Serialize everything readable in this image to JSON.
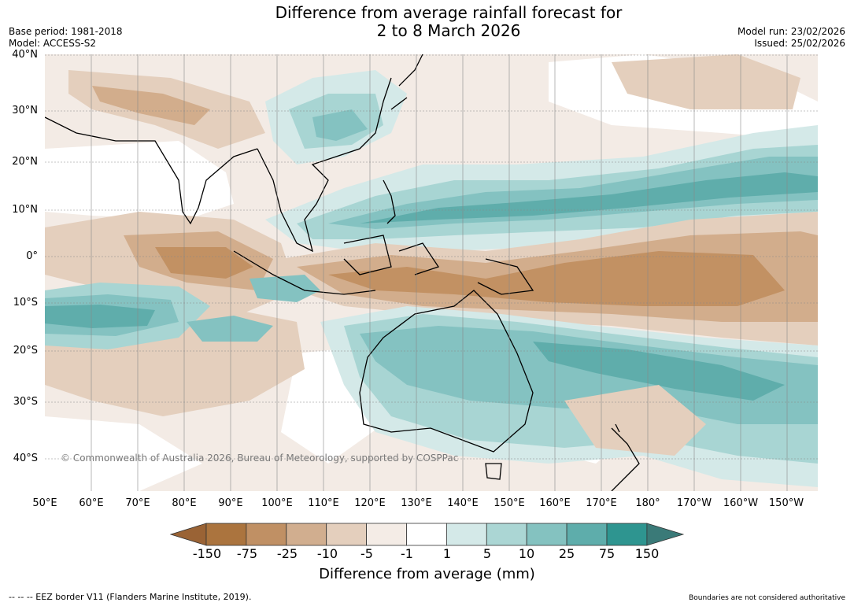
{
  "title": {
    "line1": "Difference from average rainfall forecast for",
    "line2": "2 to 8 March 2026"
  },
  "meta_left": {
    "base_period": "Base period: 1981-2018",
    "model": "Model: ACCESS-S2"
  },
  "meta_right": {
    "model_run": "Model run: 23/02/2026",
    "issued": "Issued: 25/02/2026"
  },
  "map": {
    "latitude_labels": [
      "40°N",
      "30°N",
      "20°N",
      "10°N",
      "0°",
      "10°S",
      "20°S",
      "30°S",
      "40°S"
    ],
    "longitude_labels": [
      "50°E",
      "60°E",
      "70°E",
      "80°E",
      "90°E",
      "100°E",
      "110°E",
      "120°E",
      "130°E",
      "140°E",
      "150°E",
      "160°E",
      "170°E",
      "180°",
      "170°W",
      "160°W",
      "150°W"
    ],
    "copyright": "© Commonwealth of Australia 2026, Bureau of Meteorology, supported by COSPPac",
    "colors": {
      "ocean_dry_strong": "#c29163",
      "dry_mid": "#d2ad8c",
      "dry_light": "#e4cfbd",
      "dry_faint": "#f3ebe5",
      "neutral": "#ffffff",
      "wet_faint": "#d4e9e8",
      "wet_light": "#a8d5d3",
      "wet_mid": "#84c2c1",
      "wet_strong": "#5fadab"
    }
  },
  "colorbar": {
    "ticks": [
      "-150",
      "-75",
      "-25",
      "-10",
      "-5",
      "-1",
      "1",
      "5",
      "10",
      "25",
      "75",
      "150"
    ],
    "colors": [
      "#9a6335",
      "#ab743e",
      "#c09064",
      "#d1ae8f",
      "#e4cfbd",
      "#f4ece6",
      "#ffffff",
      "#d4e9e8",
      "#abd6d4",
      "#84c2c0",
      "#5eadab",
      "#2e9590",
      "#3a7a78"
    ],
    "label": "Difference from average (mm)"
  },
  "footer": {
    "left": "--  --  -- EEZ border V11 (Flanders Marine Institute, 2019).",
    "right": "Boundaries are not considered authoritative"
  }
}
